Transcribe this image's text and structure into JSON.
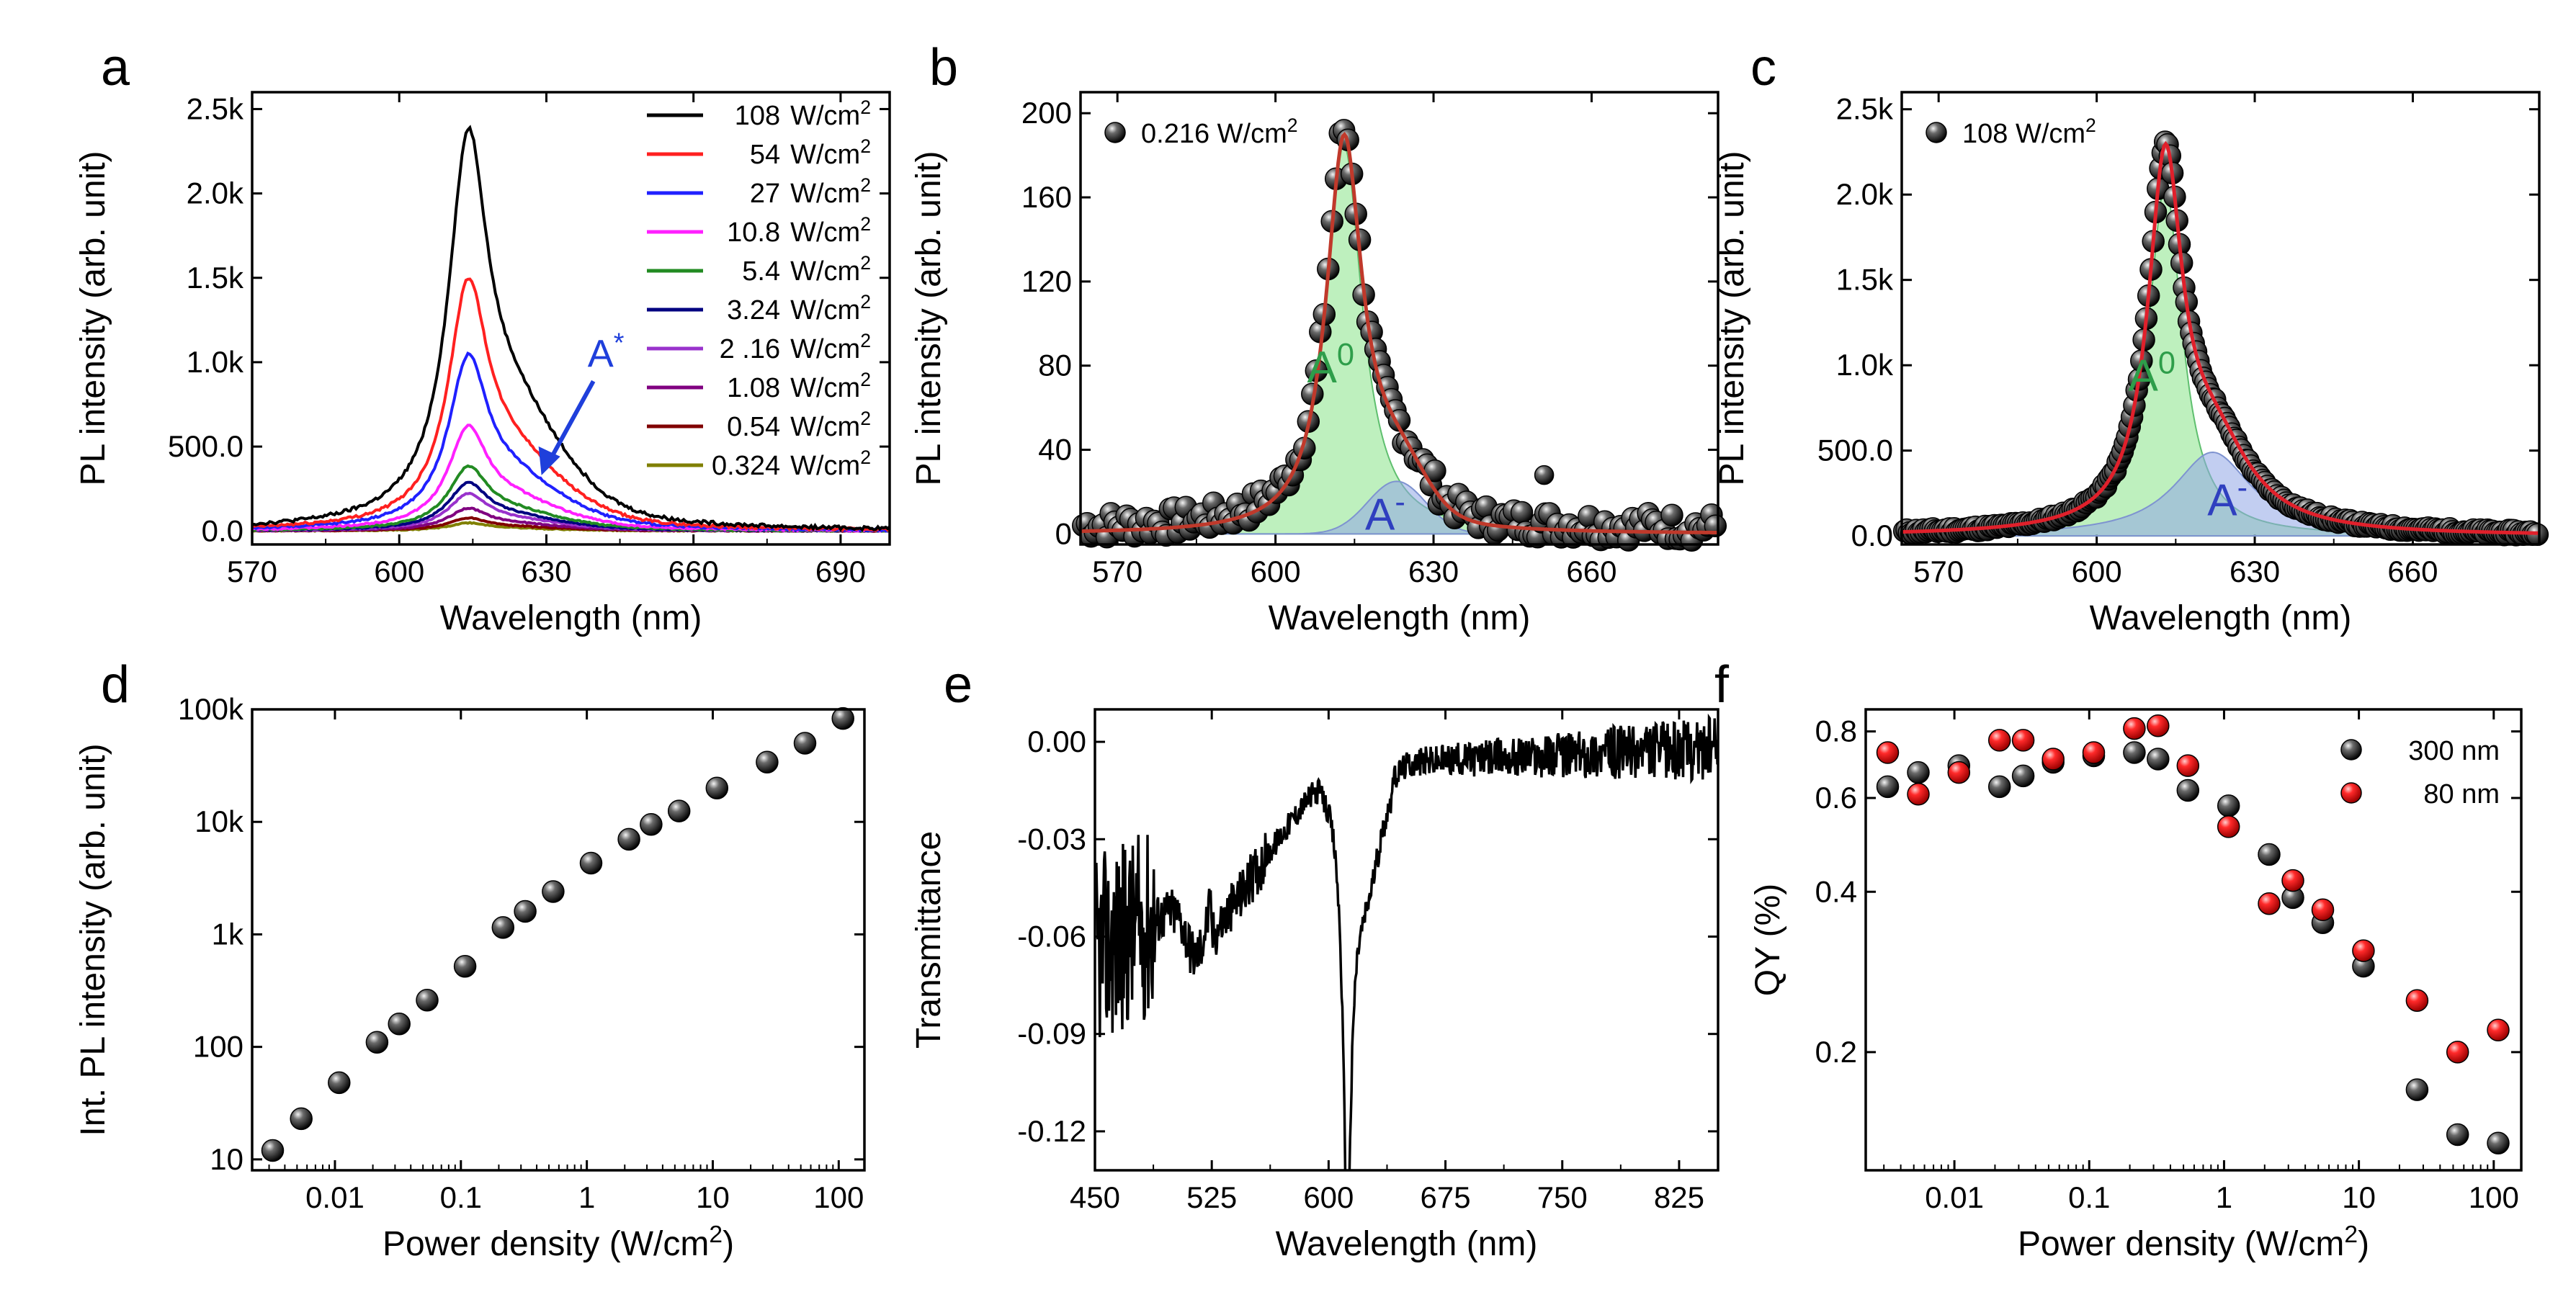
{
  "figure": {
    "panels": [
      "a",
      "b",
      "c",
      "d",
      "e",
      "f"
    ]
  },
  "chart_data": [
    {
      "id": "a",
      "type": "line",
      "title": "",
      "xlabel": "Wavelength (nm)",
      "ylabel": "PL intensity (arb. unit)",
      "xlim": [
        570,
        700
      ],
      "ylim": [
        -80,
        2600
      ],
      "xticks": [
        570,
        600,
        630,
        660,
        690
      ],
      "yticks": [
        0,
        500,
        1000,
        1500,
        2000,
        2500
      ],
      "ytick_labels": [
        "0.0",
        "500.0",
        "1.0k",
        "1.5k",
        "2.0k",
        "2.5k"
      ],
      "legend_title_unit": "W/cm",
      "legend_superscript": "2",
      "series": [
        {
          "name": "108",
          "color": "#000000",
          "peak": 2480,
          "shoulder": 330
        },
        {
          "name": "54",
          "color": "#ff2020",
          "peak": 1560,
          "shoulder": 200
        },
        {
          "name": "27",
          "color": "#2020ff",
          "peak": 1090,
          "shoulder": 140
        },
        {
          "name": "10.8",
          "color": "#ff20ff",
          "peak": 650,
          "shoulder": 80
        },
        {
          "name": "5.4",
          "color": "#228b22",
          "peak": 400,
          "shoulder": 50
        },
        {
          "name": "3.24",
          "color": "#000080",
          "peak": 300,
          "shoulder": 36
        },
        {
          "name": "2 .16",
          "color": "#9932cc",
          "peak": 230,
          "shoulder": 28
        },
        {
          "name": "1.08",
          "color": "#800080",
          "peak": 140,
          "shoulder": 18
        },
        {
          "name": "0.54",
          "color": "#800000",
          "peak": 80,
          "shoulder": 10
        },
        {
          "name": "0.324",
          "color": "#808000",
          "peak": 50,
          "shoulder": 6
        }
      ],
      "peak_center_nm": 614,
      "annotation": {
        "text": "A",
        "superscript": "*",
        "color": "#1f3fdb"
      }
    },
    {
      "id": "b",
      "type": "scatter",
      "xlabel": "Wavelength (nm)",
      "ylabel": "PL intensity (arb. unit)",
      "xlim": [
        563,
        684
      ],
      "ylim": [
        -5,
        210
      ],
      "xticks": [
        570,
        600,
        630,
        660
      ],
      "yticks": [
        0,
        40,
        80,
        120,
        160,
        200
      ],
      "legend": "0.216 W/cm",
      "legend_superscript": "2",
      "fit": {
        "A0_center": 613,
        "A0_amp": 185,
        "Aminus_center": 623,
        "Aminus_amp": 25,
        "color": "#c0392b"
      },
      "labels": {
        "A0": "A",
        "A0_sup": "0",
        "Aminus": "A",
        "Aminus_sup": "-"
      },
      "colors": {
        "A0_fill": "#9be89b",
        "Aminus_fill": "#9fb0e8",
        "A0_text": "#2e9e4a",
        "Aminus_text": "#2f3fbf"
      }
    },
    {
      "id": "c",
      "type": "scatter",
      "xlabel": "Wavelength (nm)",
      "ylabel": "PL intensity (arb. unit)",
      "xlim": [
        563,
        684
      ],
      "ylim": [
        -50,
        2600
      ],
      "xticks": [
        570,
        600,
        630,
        660
      ],
      "yticks": [
        0,
        500,
        1000,
        1500,
        2000,
        2500
      ],
      "ytick_labels": [
        "0.0",
        "500.0",
        "1.0k",
        "1.5k",
        "2.0k",
        "2.5k"
      ],
      "legend": "108 W/cm",
      "legend_superscript": "2",
      "fit": {
        "A0_center": 613,
        "A0_amp": 2050,
        "Aminus_center": 622,
        "Aminus_amp": 490,
        "color": "#e0202b"
      },
      "labels": {
        "A0": "A",
        "A0_sup": "0",
        "Aminus": "A",
        "Aminus_sup": "-"
      }
    },
    {
      "id": "d",
      "type": "scatter",
      "xlabel": "Power density (W/cm",
      "xlabel_sup": "2",
      "xlabel_end": ")",
      "ylabel": "Int. PL intensity (arb. unit)",
      "xscale": "log",
      "yscale": "log",
      "xlim": [
        0.0022,
        160
      ],
      "ylim": [
        8,
        100000
      ],
      "xticks": [
        0.01,
        0.1,
        1,
        10,
        100
      ],
      "xtick_labels": [
        "0.01",
        "0.1",
        "1",
        "10",
        "100"
      ],
      "yticks": [
        10,
        100,
        1000,
        10000,
        100000
      ],
      "ytick_labels": [
        "10",
        "100",
        "1k",
        "10k",
        "100k"
      ],
      "x": [
        0.0032,
        0.0054,
        0.0108,
        0.0216,
        0.0324,
        0.054,
        0.108,
        0.216,
        0.324,
        0.54,
        1.08,
        2.16,
        3.24,
        5.4,
        10.8,
        27,
        54,
        108
      ],
      "y": [
        12,
        23,
        48,
        110,
        160,
        260,
        520,
        1150,
        1600,
        2400,
        4300,
        7000,
        9500,
        12500,
        20000,
        34000,
        50000,
        83000
      ]
    },
    {
      "id": "e",
      "type": "line",
      "xlabel": "Wavelength (nm)",
      "ylabel": "Transmittance",
      "xlim": [
        450,
        850
      ],
      "ylim": [
        -0.132,
        0.01
      ],
      "xticks": [
        450,
        525,
        600,
        675,
        750,
        825
      ],
      "yticks": [
        0.0,
        -0.03,
        -0.06,
        -0.09,
        -0.12
      ],
      "ytick_labels": [
        "0.00",
        "-0.03",
        "-0.06",
        "-0.09",
        "-0.12"
      ],
      "min_point": {
        "x": 612,
        "y": -0.128
      }
    },
    {
      "id": "f",
      "type": "scatter",
      "xlabel": "Power density (W/cm",
      "xlabel_sup": "2",
      "xlabel_end": ")",
      "ylabel": "QY (%)",
      "xscale": "log",
      "yscale": "log",
      "xlim": [
        0.0022,
        160
      ],
      "ylim": [
        0.12,
        0.88
      ],
      "xticks": [
        0.01,
        0.1,
        1,
        10,
        100
      ],
      "xtick_labels": [
        "0.01",
        "0.1",
        "1",
        "10",
        "100"
      ],
      "yticks": [
        0.2,
        0.4,
        0.6,
        0.8
      ],
      "ytick_labels": [
        "0.2",
        "0.4",
        "0.6",
        "0.8"
      ],
      "series": [
        {
          "name": "300 nm",
          "color": "#111111",
          "x": [
            0.0032,
            0.0054,
            0.0108,
            0.0216,
            0.0324,
            0.054,
            0.108,
            0.216,
            0.324,
            0.54,
            1.08,
            2.16,
            3.24,
            5.4,
            10.8,
            27,
            54,
            108
          ],
          "y": [
            0.63,
            0.67,
            0.69,
            0.63,
            0.66,
            0.7,
            0.72,
            0.73,
            0.71,
            0.62,
            0.58,
            0.47,
            0.39,
            0.35,
            0.29,
            0.17,
            0.14,
            0.135
          ]
        },
        {
          "name": "80 nm",
          "color": "#e8101a",
          "x": [
            0.0032,
            0.0054,
            0.0108,
            0.0216,
            0.0324,
            0.054,
            0.108,
            0.216,
            0.324,
            0.54,
            1.08,
            2.16,
            3.24,
            5.4,
            10.8,
            27,
            54,
            108
          ],
          "y": [
            0.73,
            0.61,
            0.67,
            0.77,
            0.77,
            0.71,
            0.73,
            0.81,
            0.82,
            0.69,
            0.53,
            0.38,
            0.42,
            0.37,
            0.31,
            0.25,
            0.2,
            0.22
          ]
        }
      ]
    }
  ]
}
